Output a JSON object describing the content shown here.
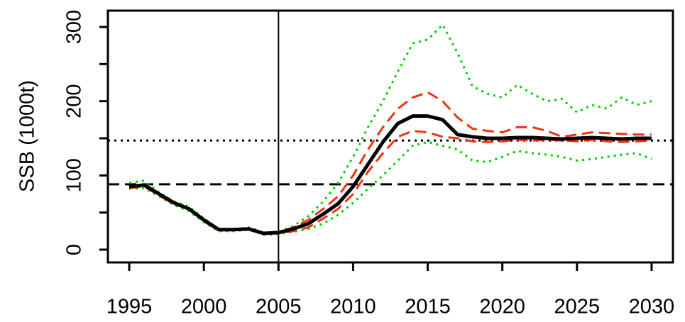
{
  "chart_data": {
    "type": "line",
    "y_label": "SSB (1000t)",
    "x": [
      1995,
      1996,
      1997,
      1998,
      1999,
      2000,
      2001,
      2002,
      2003,
      2004,
      2005,
      2006,
      2007,
      2008,
      2009,
      2010,
      2011,
      2012,
      2013,
      2014,
      2015,
      2016,
      2017,
      2018,
      2019,
      2020,
      2021,
      2022,
      2023,
      2024,
      2025,
      2026,
      2027,
      2028,
      2029,
      2030
    ],
    "series": [
      {
        "color": "#00cc00",
        "style": "dotted",
        "width": 3,
        "values": [
          90,
          93,
          77,
          65,
          58,
          42,
          28,
          27,
          30,
          23,
          24,
          32,
          45,
          65,
          90,
          125,
          165,
          200,
          240,
          278,
          283,
          303,
          265,
          220,
          210,
          205,
          222,
          210,
          200,
          203,
          185,
          195,
          190,
          205,
          195,
          200
        ]
      },
      {
        "color": "#00cc00",
        "style": "dotted",
        "width": 3,
        "values": [
          82,
          83,
          72,
          60,
          52,
          37,
          25,
          25,
          27,
          20,
          21,
          24,
          28,
          35,
          47,
          63,
          82,
          100,
          120,
          140,
          145,
          140,
          135,
          120,
          118,
          125,
          133,
          130,
          128,
          125,
          120,
          122,
          125,
          128,
          130,
          122
        ]
      },
      {
        "color": "#ee3311",
        "style": "dashed",
        "width": 3,
        "values": [
          84,
          86,
          74,
          62,
          56,
          39,
          27,
          27,
          29,
          21,
          23,
          30,
          40,
          55,
          72,
          100,
          135,
          165,
          190,
          205,
          212,
          200,
          178,
          163,
          160,
          158,
          165,
          165,
          160,
          152,
          155,
          158,
          157,
          156,
          155,
          155
        ]
      },
      {
        "color": "#ee3311",
        "style": "dashed",
        "width": 3,
        "values": [
          83,
          85,
          73,
          61,
          55,
          38,
          26,
          26,
          28,
          21,
          22,
          25,
          30,
          42,
          55,
          75,
          105,
          130,
          152,
          160,
          158,
          152,
          150,
          146,
          145,
          146,
          148,
          147,
          148,
          147,
          146,
          148,
          146,
          145,
          146,
          147
        ]
      },
      {
        "color": "#000000",
        "style": "solid",
        "width": 5,
        "values": [
          85,
          87,
          75,
          63,
          55,
          40,
          27,
          27,
          28,
          22,
          23,
          28,
          35,
          48,
          62,
          85,
          115,
          145,
          170,
          180,
          180,
          175,
          155,
          152,
          150,
          150,
          151,
          151,
          150,
          149,
          150,
          151,
          150,
          149,
          150,
          150
        ]
      }
    ],
    "hlines": [
      {
        "value": 88,
        "style": "dashed"
      },
      {
        "value": 147,
        "style": "dotted"
      }
    ],
    "vlines": [
      2005
    ],
    "xlim": [
      1993.57,
      2031.43
    ],
    "ylim": [
      -17.2,
      322
    ],
    "xticks": [
      1995,
      2000,
      2005,
      2010,
      2015,
      2020,
      2025,
      2030
    ],
    "yticks": [
      0,
      100,
      200,
      300
    ],
    "yminor_ticks": [
      50,
      150,
      250
    ]
  }
}
